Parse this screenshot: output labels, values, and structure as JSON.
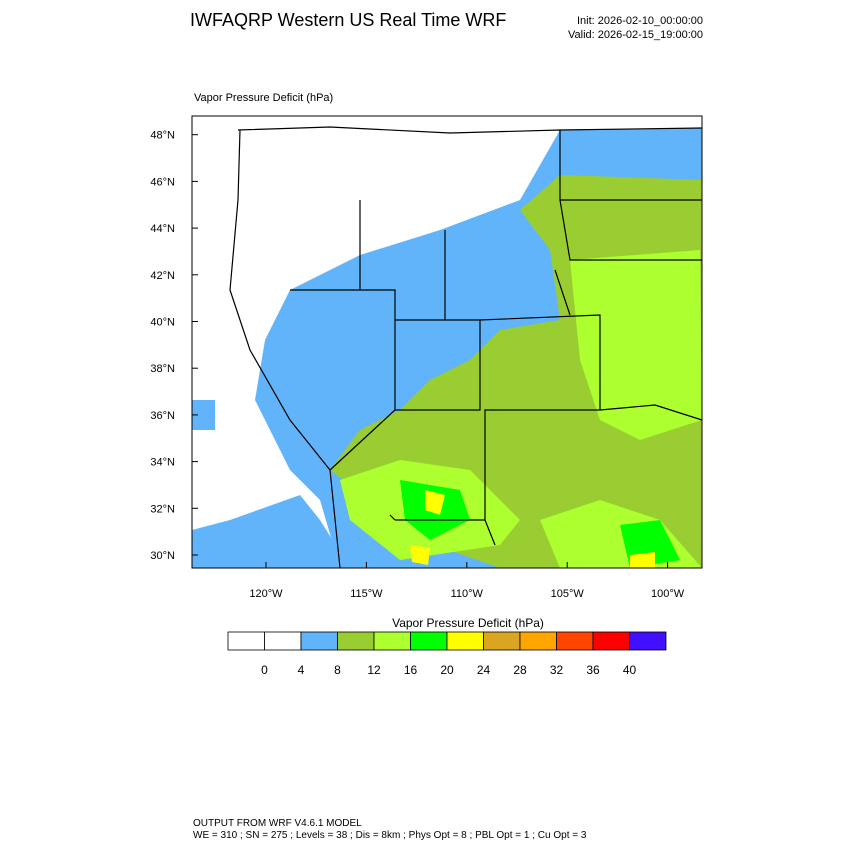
{
  "header": {
    "title": "IWFAQRP Western US Real Time WRF",
    "init": "Init: 2026-02-10_00:00:00",
    "valid": "Valid: 2026-02-15_19:00:00"
  },
  "map": {
    "field_label": "Vapor Pressure Deficit   (hPa)",
    "lat_ticks": [
      {
        "value": 48,
        "label": "48°N"
      },
      {
        "value": 46,
        "label": "46°N"
      },
      {
        "value": 44,
        "label": "44°N"
      },
      {
        "value": 42,
        "label": "42°N"
      },
      {
        "value": 40,
        "label": "40°N"
      },
      {
        "value": 38,
        "label": "38°N"
      },
      {
        "value": 36,
        "label": "36°N"
      },
      {
        "value": 34,
        "label": "34°N"
      },
      {
        "value": 32,
        "label": "32°N"
      },
      {
        "value": 30,
        "label": "30°N"
      }
    ],
    "lon_ticks": [
      {
        "value": 120,
        "label": "120°W"
      },
      {
        "value": 115,
        "label": "115°W"
      },
      {
        "value": 110,
        "label": "110°W"
      },
      {
        "value": 105,
        "label": "105°W"
      },
      {
        "value": 100,
        "label": "100°W"
      }
    ]
  },
  "colorbar": {
    "title": "Vapor Pressure Deficit  (hPa)",
    "levels": [
      0,
      4,
      8,
      12,
      16,
      20,
      24,
      28,
      32,
      36,
      40
    ],
    "colors": [
      "#ffffff",
      "#ffffff",
      "#62b4fa",
      "#9acd32",
      "#adff2f",
      "#00ff00",
      "#ffff00",
      "#daa520",
      "#ffa500",
      "#ff4500",
      "#ff0000",
      "#4010ff"
    ]
  },
  "footer": {
    "line1": "OUTPUT FROM WRF V4.6.1 MODEL",
    "line2": "WE = 310 ; SN = 275 ; Levels = 38 ; Dis = 8km ; Phys Opt = 8 ; PBL Opt = 1 ; Cu Opt = 3"
  }
}
